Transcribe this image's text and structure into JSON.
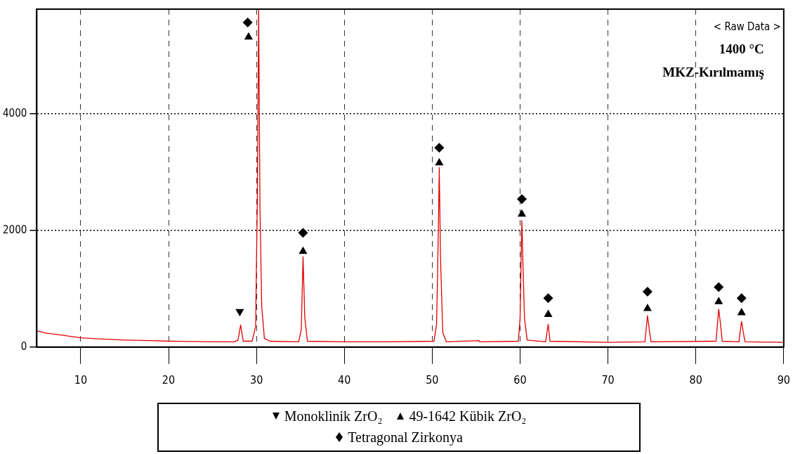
{
  "chart_data": {
    "type": "line",
    "x": [
      5,
      6,
      8,
      10,
      12,
      15,
      18,
      20,
      25,
      27.5,
      27.9,
      28.2,
      28.5,
      29.5,
      29.9,
      30.1,
      30.25,
      30.4,
      30.6,
      30.9,
      31.5,
      34.8,
      35.1,
      35.3,
      35.5,
      35.8,
      40,
      45,
      50.2,
      50.5,
      50.7,
      50.8,
      50.95,
      51.2,
      51.6,
      55.3,
      55.4,
      59.8,
      60,
      60.2,
      60.35,
      60.5,
      60.8,
      62.9,
      63.2,
      63.4,
      70,
      74.2,
      74.5,
      74.7,
      74.9,
      82.3,
      82.6,
      82.8,
      83,
      84.9,
      85.2,
      85.4,
      85.6,
      90
    ],
    "series": [
      {
        "color": "#e00000",
        "values": [
          280,
          240,
          200,
          160,
          140,
          120,
          110,
          100,
          90,
          90,
          120,
          380,
          100,
          100,
          350,
          2500,
          5800,
          2400,
          700,
          150,
          100,
          90,
          300,
          1550,
          500,
          100,
          90,
          90,
          100,
          400,
          2000,
          3080,
          1500,
          250,
          90,
          110,
          90,
          100,
          500,
          2170,
          1300,
          500,
          120,
          90,
          390,
          100,
          80,
          90,
          540,
          300,
          90,
          100,
          650,
          400,
          100,
          90,
          440,
          250,
          90,
          80
        ]
      },
      {
        "type": "scatter",
        "name": "Monoklinik ZrO₂",
        "marker": "triangle-down",
        "color": "#000000",
        "x": [
          28.1
        ],
        "values": [
          610
        ]
      },
      {
        "type": "scatter",
        "name": "49-1642 Kübik ZrO₂",
        "marker": "triangle",
        "color": "#000000",
        "x": [
          29.1,
          35.3,
          50.8,
          60.2,
          63.2,
          74.5,
          82.6,
          85.2
        ],
        "values": [
          5320,
          1640,
          3160,
          2280,
          560,
          660,
          780,
          590
        ]
      },
      {
        "type": "scatter",
        "name": "Tetragonal Zirkonya",
        "marker": "diamond",
        "color": "#000000",
        "x": [
          29.0,
          35.3,
          50.8,
          60.2,
          63.2,
          74.5,
          82.6,
          85.2
        ],
        "values": [
          5570,
          1960,
          3420,
          2540,
          840,
          950,
          1030,
          840
        ]
      }
    ],
    "xlim": [
      5,
      90
    ],
    "xticks": [
      10,
      20,
      30,
      40,
      50,
      60,
      70,
      80,
      90
    ],
    "ylim": [
      0,
      5800
    ],
    "yticks": [
      0,
      2000,
      4000
    ],
    "grid": true,
    "legend": "bottom",
    "annotations": [
      "< Raw Data >",
      "1400 °C",
      "MKZ-Kırılmamış"
    ]
  }
}
